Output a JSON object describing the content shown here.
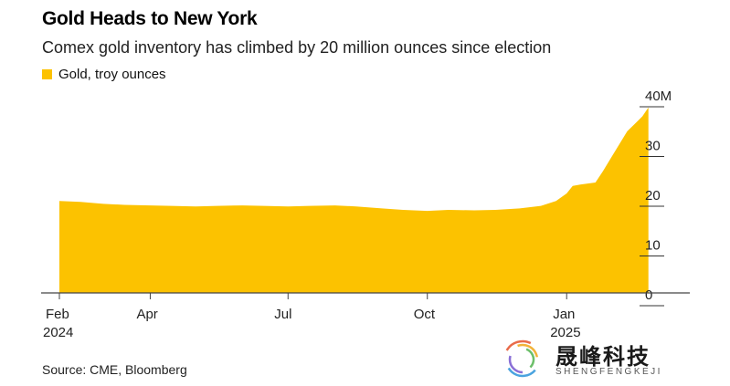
{
  "header": {
    "title": "Gold Heads to New York",
    "subtitle": "Comex gold inventory has climbed by 20 million ounces since election"
  },
  "source": "Source: CME, Bloomberg",
  "watermark": {
    "text_cn": "晟峰科技",
    "text_en": "SHENGFENGKEJI"
  },
  "colors": {
    "series": "#fcc200",
    "axis": "#444444",
    "gridline": "#cccccc"
  },
  "chart_data": {
    "type": "area",
    "legend": {
      "position": "top-left",
      "entries": [
        "Gold, troy ounces"
      ]
    },
    "series": [
      {
        "name": "Gold, troy ounces",
        "color": "#fcc200",
        "points": [
          [
            "2024-02-01",
            18.5
          ],
          [
            "2024-02-15",
            18.3
          ],
          [
            "2024-03-01",
            17.9
          ],
          [
            "2024-03-15",
            17.7
          ],
          [
            "2024-04-01",
            17.6
          ],
          [
            "2024-04-15",
            17.5
          ],
          [
            "2024-05-01",
            17.4
          ],
          [
            "2024-05-15",
            17.5
          ],
          [
            "2024-06-01",
            17.6
          ],
          [
            "2024-06-15",
            17.5
          ],
          [
            "2024-07-01",
            17.4
          ],
          [
            "2024-07-15",
            17.5
          ],
          [
            "2024-08-01",
            17.6
          ],
          [
            "2024-08-15",
            17.4
          ],
          [
            "2024-09-01",
            17.0
          ],
          [
            "2024-09-15",
            16.7
          ],
          [
            "2024-10-01",
            16.5
          ],
          [
            "2024-10-15",
            16.7
          ],
          [
            "2024-11-01",
            16.6
          ],
          [
            "2024-11-15",
            16.7
          ],
          [
            "2024-12-01",
            17.0
          ],
          [
            "2024-12-15",
            17.5
          ],
          [
            "2024-12-25",
            18.5
          ],
          [
            "2025-01-01",
            20.0
          ],
          [
            "2025-01-05",
            21.5
          ],
          [
            "2025-01-10",
            21.8
          ],
          [
            "2025-01-20",
            22.2
          ],
          [
            "2025-01-25",
            24.5
          ],
          [
            "2025-01-30",
            27.0
          ],
          [
            "2025-02-05",
            30.0
          ],
          [
            "2025-02-10",
            32.5
          ],
          [
            "2025-02-15",
            34.0
          ],
          [
            "2025-02-20",
            35.5
          ],
          [
            "2025-02-24",
            37.3
          ]
        ]
      }
    ],
    "x_range": [
      "2024-02-01",
      "2025-03-01"
    ],
    "x_ticks": [
      {
        "date": "2024-02-01",
        "label": "Feb",
        "sublabel": "2024"
      },
      {
        "date": "2024-04-01",
        "label": "Apr",
        "sublabel": ""
      },
      {
        "date": "2024-07-01",
        "label": "Jul",
        "sublabel": ""
      },
      {
        "date": "2024-10-01",
        "label": "Oct",
        "sublabel": ""
      },
      {
        "date": "2025-01-01",
        "label": "Jan",
        "sublabel": "2025"
      }
    ],
    "y_ticks": [
      {
        "value": 40,
        "label": "40M"
      },
      {
        "value": 30,
        "label": "30"
      },
      {
        "value": 20,
        "label": "20"
      },
      {
        "value": 10,
        "label": "10"
      },
      {
        "value": 0,
        "label": "0"
      }
    ],
    "ylim": [
      0,
      40
    ],
    "grid": false
  }
}
